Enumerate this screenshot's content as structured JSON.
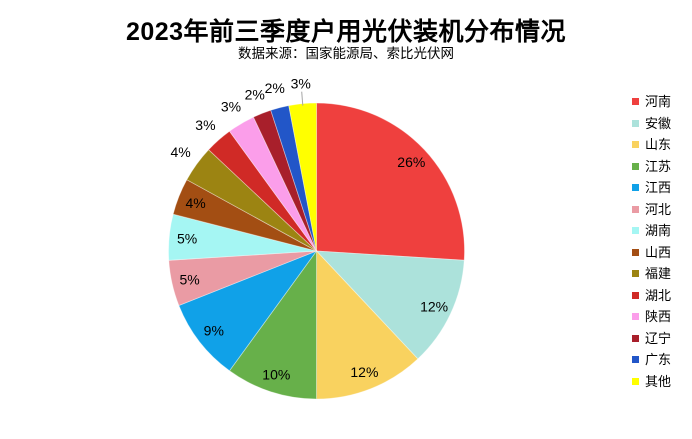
{
  "title": "2023年前三季度户用光伏装机分布情况",
  "subtitle": "数据来源：国家能源局、索比光伏网",
  "chart_data": {
    "type": "pie",
    "title": "2023年前三季度户用光伏装机分布情况",
    "subtitle": "数据来源：国家能源局、索比光伏网",
    "start_angle_deg": 0,
    "direction": "clockwise",
    "legend_position": "right",
    "unit": "%",
    "slices": [
      {
        "label": "河南",
        "value": 26,
        "pct_label": "26%",
        "color": "#EF403E",
        "label_placement": "inside",
        "leader_line": false
      },
      {
        "label": "安徽",
        "value": 12,
        "pct_label": "12%",
        "color": "#ACE2DB",
        "label_placement": "inside",
        "leader_line": false
      },
      {
        "label": "山东",
        "value": 12,
        "pct_label": "12%",
        "color": "#F9D25F",
        "label_placement": "inside",
        "leader_line": false
      },
      {
        "label": "江苏",
        "value": 10,
        "pct_label": "10%",
        "color": "#67B04A",
        "label_placement": "inside",
        "leader_line": false
      },
      {
        "label": "江西",
        "value": 9,
        "pct_label": "9%",
        "color": "#10A1E8",
        "label_placement": "inside",
        "leader_line": false
      },
      {
        "label": "河北",
        "value": 5,
        "pct_label": "5%",
        "color": "#EA9BA4",
        "label_placement": "inside",
        "leader_line": false
      },
      {
        "label": "湖南",
        "value": 5,
        "pct_label": "5%",
        "color": "#A5F6F3",
        "label_placement": "inside",
        "leader_line": false
      },
      {
        "label": "山西",
        "value": 4,
        "pct_label": "4%",
        "color": "#A34E13",
        "label_placement": "inside",
        "leader_line": false
      },
      {
        "label": "福建",
        "value": 4,
        "pct_label": "4%",
        "color": "#9C8412",
        "label_placement": "outside",
        "leader_line": false
      },
      {
        "label": "湖北",
        "value": 3,
        "pct_label": "3%",
        "color": "#D02A26",
        "label_placement": "outside",
        "leader_line": false
      },
      {
        "label": "陕西",
        "value": 3,
        "pct_label": "3%",
        "color": "#FB9EEA",
        "label_placement": "outside",
        "leader_line": false
      },
      {
        "label": "辽宁",
        "value": 2,
        "pct_label": "2%",
        "color": "#A81F2B",
        "label_placement": "outside",
        "leader_line": false
      },
      {
        "label": "广东",
        "value": 2,
        "pct_label": "2%",
        "color": "#2256C8",
        "label_placement": "outside",
        "leader_line": false
      },
      {
        "label": "其他",
        "value": 3,
        "pct_label": "3%",
        "color": "#FFFF00",
        "label_placement": "outside",
        "leader_line": true
      }
    ]
  },
  "colors": {
    "background": "#FFFFFF",
    "title_text": "#000000",
    "label_text": "#000000",
    "leader_line": "#A6A6A6",
    "slice_border": "rgba(255,255,255,0.45)"
  }
}
